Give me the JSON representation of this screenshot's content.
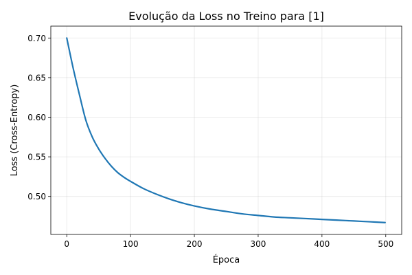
{
  "chart_data": {
    "type": "line",
    "title": "Evolução da Loss no Treino para [1]",
    "xlabel": "Época",
    "ylabel": "Loss (Cross-Entropy)",
    "xlim": [
      -25,
      525
    ],
    "ylim": [
      0.452,
      0.715
    ],
    "grid": true,
    "x_ticks": [
      0,
      100,
      200,
      300,
      400,
      500
    ],
    "x_tick_labels": [
      "0",
      "100",
      "200",
      "300",
      "400",
      "500"
    ],
    "y_ticks": [
      0.5,
      0.55,
      0.6,
      0.65,
      0.7
    ],
    "y_tick_labels": [
      "0.50",
      "0.55",
      "0.60",
      "0.65",
      "0.70"
    ],
    "series": [
      {
        "color": "#1f77b4",
        "x": [
          0,
          10,
          20,
          30,
          40,
          50,
          60,
          70,
          80,
          90,
          100,
          120,
          140,
          160,
          180,
          200,
          225,
          250,
          275,
          300,
          325,
          350,
          375,
          400,
          425,
          450,
          475,
          499
        ],
        "y": [
          0.7,
          0.662,
          0.628,
          0.596,
          0.575,
          0.56,
          0.548,
          0.538,
          0.53,
          0.524,
          0.519,
          0.51,
          0.503,
          0.497,
          0.492,
          0.488,
          0.484,
          0.481,
          0.478,
          0.476,
          0.474,
          0.473,
          0.472,
          0.471,
          0.47,
          0.469,
          0.468,
          0.467
        ]
      }
    ]
  }
}
